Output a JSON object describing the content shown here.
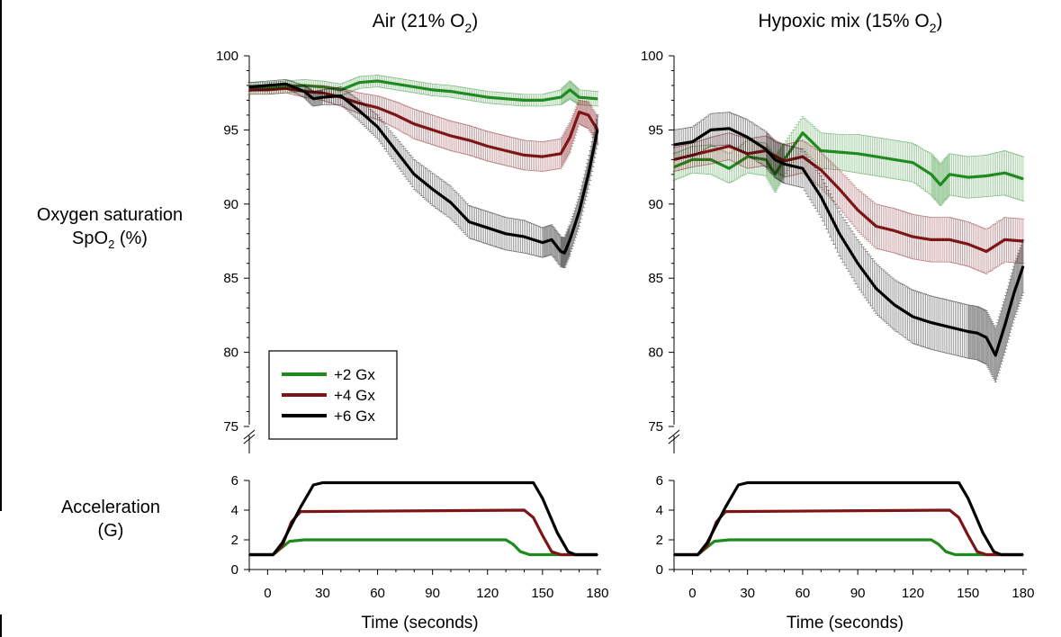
{
  "row_labels": {
    "spo2_line1": "Oxygen saturation",
    "spo2_line2_prefix": "SpO",
    "spo2_line2_sub": "2",
    "spo2_line2_suffix": " (%)",
    "accel_line1": "Acceleration",
    "accel_line2": "(G)"
  },
  "legend": {
    "items": [
      {
        "label": "+2 Gx",
        "color": "#1f8a1f"
      },
      {
        "label": "+4 Gx",
        "color": "#7d1416"
      },
      {
        "label": "+6 Gx",
        "color": "#000000"
      }
    ]
  },
  "chart_data": [
    {
      "type": "line",
      "panel": "spo2",
      "title_prefix": "Air (21% O",
      "title_sub": "2",
      "title_suffix": ")",
      "xlabel": "",
      "ylabel": "",
      "xlim": [
        -10,
        182
      ],
      "ylim": [
        75,
        100
      ],
      "yticks": [
        75,
        80,
        85,
        90,
        95,
        100
      ],
      "error_bars": true,
      "series": [
        {
          "name": "+2 Gx",
          "color": "#1f8a1f",
          "x": [
            -10,
            0,
            10,
            20,
            30,
            40,
            50,
            60,
            70,
            80,
            90,
            100,
            110,
            120,
            130,
            140,
            150,
            160,
            165,
            170,
            180
          ],
          "y": [
            97.8,
            97.8,
            97.9,
            98.0,
            97.9,
            97.7,
            98.2,
            98.3,
            98.1,
            97.9,
            97.7,
            97.6,
            97.4,
            97.2,
            97.1,
            97.0,
            97.0,
            97.2,
            97.7,
            97.2,
            97.1
          ],
          "err": [
            0.4,
            0.4,
            0.4,
            0.4,
            0.4,
            0.4,
            0.4,
            0.4,
            0.4,
            0.4,
            0.4,
            0.4,
            0.4,
            0.4,
            0.4,
            0.4,
            0.4,
            0.5,
            0.6,
            0.5,
            0.5
          ]
        },
        {
          "name": "+4 Gx",
          "color": "#7d1416",
          "x": [
            -10,
            0,
            10,
            20,
            30,
            40,
            50,
            60,
            70,
            80,
            90,
            100,
            110,
            120,
            130,
            140,
            150,
            160,
            165,
            170,
            175,
            180
          ],
          "y": [
            97.7,
            97.7,
            97.8,
            97.6,
            97.5,
            97.2,
            96.8,
            96.5,
            96.0,
            95.4,
            95.0,
            94.6,
            94.3,
            93.9,
            93.6,
            93.3,
            93.2,
            93.4,
            94.5,
            96.2,
            96.0,
            95.0
          ],
          "err": [
            0.3,
            0.3,
            0.3,
            0.4,
            0.5,
            0.6,
            0.7,
            0.8,
            0.9,
            1.0,
            1.0,
            1.0,
            1.0,
            1.0,
            1.0,
            1.0,
            1.0,
            1.0,
            1.0,
            0.8,
            0.9,
            0.9
          ]
        },
        {
          "name": "+6 Gx",
          "color": "#000000",
          "x": [
            -10,
            0,
            10,
            20,
            25,
            30,
            40,
            50,
            60,
            70,
            80,
            90,
            100,
            110,
            120,
            130,
            140,
            150,
            155,
            160,
            162,
            165,
            170,
            175,
            180
          ],
          "y": [
            97.9,
            98.0,
            98.1,
            97.6,
            97.1,
            97.2,
            97.3,
            96.3,
            95.2,
            93.6,
            92.0,
            91.0,
            90.1,
            88.8,
            88.4,
            88.0,
            87.8,
            87.4,
            87.6,
            86.8,
            86.7,
            87.6,
            89.5,
            92.0,
            95.0
          ],
          "err": [
            0.3,
            0.3,
            0.3,
            0.4,
            0.5,
            0.5,
            0.6,
            0.7,
            0.8,
            0.9,
            1.0,
            1.1,
            1.1,
            1.1,
            1.1,
            1.1,
            1.1,
            1.0,
            1.0,
            1.0,
            1.0,
            1.0,
            1.0,
            1.0,
            1.0
          ]
        }
      ]
    },
    {
      "type": "line",
      "panel": "spo2",
      "title_prefix": "Hypoxic mix (15% O",
      "title_sub": "2",
      "title_suffix": ")",
      "xlabel": "",
      "ylabel": "",
      "xlim": [
        -10,
        182
      ],
      "ylim": [
        75,
        100
      ],
      "yticks": [
        75,
        80,
        85,
        90,
        95,
        100
      ],
      "error_bars": true,
      "series": [
        {
          "name": "+2 Gx",
          "color": "#1f8a1f",
          "x": [
            -10,
            0,
            10,
            20,
            30,
            40,
            45,
            50,
            60,
            70,
            80,
            90,
            100,
            110,
            120,
            130,
            135,
            140,
            150,
            160,
            170,
            180
          ],
          "y": [
            92.5,
            93.0,
            93.0,
            92.4,
            93.2,
            93.0,
            92.0,
            93.0,
            94.8,
            93.6,
            93.5,
            93.4,
            93.2,
            93.0,
            92.8,
            92.0,
            91.3,
            92.0,
            91.8,
            91.9,
            92.1,
            91.7
          ],
          "err": [
            0.9,
            0.9,
            1.0,
            1.0,
            1.1,
            1.1,
            1.2,
            1.1,
            1.1,
            1.2,
            1.2,
            1.3,
            1.3,
            1.3,
            1.3,
            1.4,
            1.4,
            1.4,
            1.4,
            1.4,
            1.5,
            1.5
          ]
        },
        {
          "name": "+4 Gx",
          "color": "#7d1416",
          "x": [
            -10,
            0,
            10,
            20,
            30,
            40,
            50,
            60,
            70,
            80,
            90,
            100,
            110,
            120,
            130,
            140,
            150,
            160,
            170,
            180
          ],
          "y": [
            93.0,
            93.3,
            93.6,
            93.9,
            93.4,
            93.6,
            92.9,
            93.2,
            92.3,
            91.0,
            89.6,
            88.5,
            88.2,
            87.8,
            87.6,
            87.6,
            87.3,
            86.8,
            87.6,
            87.5
          ],
          "err": [
            0.8,
            0.8,
            0.9,
            0.9,
            1.0,
            1.0,
            1.1,
            1.1,
            1.2,
            1.3,
            1.4,
            1.5,
            1.5,
            1.5,
            1.5,
            1.5,
            1.5,
            1.5,
            1.5,
            1.5
          ]
        },
        {
          "name": "+6 Gx",
          "color": "#000000",
          "x": [
            -10,
            0,
            10,
            20,
            30,
            40,
            45,
            50,
            60,
            70,
            80,
            90,
            100,
            110,
            120,
            130,
            140,
            150,
            155,
            160,
            165,
            170,
            175,
            180
          ],
          "y": [
            94.0,
            94.2,
            95.0,
            95.1,
            94.5,
            93.7,
            93.0,
            92.7,
            92.4,
            90.5,
            88.0,
            86.0,
            84.3,
            83.2,
            82.4,
            82.0,
            81.7,
            81.4,
            81.3,
            81.0,
            79.8,
            81.8,
            84.0,
            85.8
          ],
          "err": [
            1.0,
            1.0,
            1.1,
            1.1,
            1.2,
            1.2,
            1.2,
            1.3,
            1.3,
            1.4,
            1.5,
            1.6,
            1.7,
            1.7,
            1.8,
            1.8,
            1.8,
            1.8,
            1.8,
            1.8,
            1.8,
            1.8,
            1.8,
            1.8
          ]
        }
      ]
    },
    {
      "type": "line",
      "panel": "accel",
      "xlabel": "Time (seconds)",
      "ylabel": "",
      "xlim": [
        -10,
        182
      ],
      "ylim": [
        0,
        6.5
      ],
      "xticks": [
        0,
        30,
        60,
        90,
        120,
        150,
        180
      ],
      "yticks": [
        0,
        2,
        4,
        6
      ],
      "series": [
        {
          "name": "+2 Gx",
          "color": "#1f8a1f",
          "x": [
            -10,
            3,
            7,
            12,
            20,
            130,
            134,
            138,
            143,
            150,
            180
          ],
          "y": [
            1.0,
            1.0,
            1.4,
            1.9,
            2.0,
            2.0,
            1.7,
            1.2,
            1.0,
            1.0,
            1.0
          ]
        },
        {
          "name": "+4 Gx",
          "color": "#7d1416",
          "x": [
            -10,
            3,
            8,
            13,
            18,
            140,
            145,
            150,
            155,
            160,
            180
          ],
          "y": [
            1.0,
            1.0,
            1.6,
            3.2,
            3.9,
            4.0,
            3.5,
            2.3,
            1.2,
            1.0,
            1.0
          ]
        },
        {
          "name": "+6 Gx",
          "color": "#000000",
          "x": [
            -10,
            3,
            8,
            18,
            25,
            30,
            145,
            150,
            158,
            164,
            168,
            180
          ],
          "y": [
            1.0,
            1.0,
            1.8,
            4.2,
            5.7,
            5.85,
            5.85,
            4.8,
            2.5,
            1.2,
            1.0,
            1.0
          ]
        }
      ]
    },
    {
      "type": "line",
      "panel": "accel",
      "xlabel": "Time (seconds)",
      "ylabel": "",
      "xlim": [
        -10,
        182
      ],
      "ylim": [
        0,
        6.5
      ],
      "xticks": [
        0,
        30,
        60,
        90,
        120,
        150,
        180
      ],
      "yticks": [
        0,
        2,
        4,
        6
      ],
      "series": [
        {
          "name": "+2 Gx",
          "color": "#1f8a1f",
          "x": [
            -10,
            3,
            7,
            12,
            20,
            130,
            134,
            138,
            143,
            150,
            180
          ],
          "y": [
            1.0,
            1.0,
            1.4,
            1.9,
            2.0,
            2.0,
            1.7,
            1.2,
            1.0,
            1.0,
            1.0
          ]
        },
        {
          "name": "+4 Gx",
          "color": "#7d1416",
          "x": [
            -10,
            3,
            8,
            13,
            18,
            140,
            145,
            150,
            155,
            160,
            180
          ],
          "y": [
            1.0,
            1.0,
            1.6,
            3.2,
            3.9,
            4.0,
            3.5,
            2.3,
            1.2,
            1.0,
            1.0
          ]
        },
        {
          "name": "+6 Gx",
          "color": "#000000",
          "x": [
            -10,
            3,
            8,
            18,
            25,
            30,
            145,
            150,
            158,
            164,
            168,
            180
          ],
          "y": [
            1.0,
            1.0,
            1.8,
            4.2,
            5.7,
            5.85,
            5.85,
            4.8,
            2.5,
            1.2,
            1.0,
            1.0
          ]
        }
      ]
    }
  ]
}
